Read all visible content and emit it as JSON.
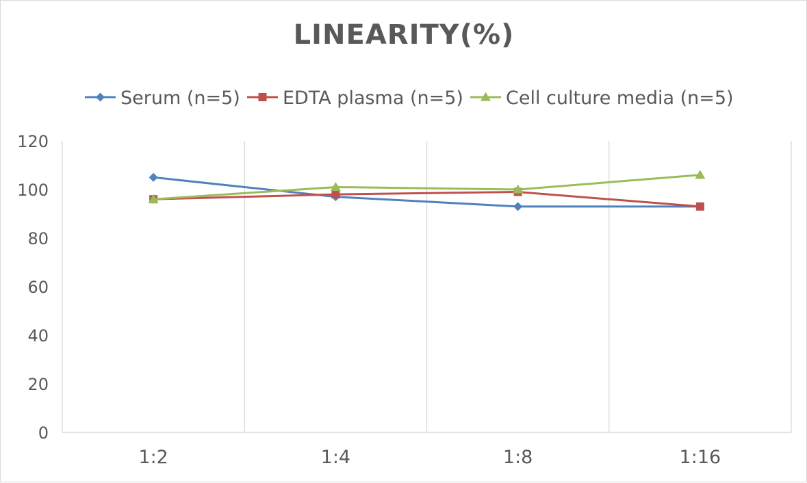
{
  "chart_data": {
    "type": "line",
    "title": "LINEARITY(%)",
    "xlabel": "",
    "ylabel": "",
    "categories": [
      "1:2",
      "1:4",
      "1:8",
      "1:16"
    ],
    "ylim": [
      0,
      120
    ],
    "yticks": [
      0,
      20,
      40,
      60,
      80,
      100,
      120
    ],
    "grid": "vertical",
    "legend_position": "top",
    "series": [
      {
        "name": "Serum (n=5)",
        "values": [
          105,
          97,
          93,
          93
        ],
        "color": "#4F81BD",
        "marker": "diamond"
      },
      {
        "name": "EDTA plasma (n=5)",
        "values": [
          96,
          98,
          99,
          93
        ],
        "color": "#C0504D",
        "marker": "square"
      },
      {
        "name": "Cell culture media (n=5)",
        "values": [
          96,
          101,
          100,
          106
        ],
        "color": "#9BBB59",
        "marker": "triangle"
      }
    ]
  }
}
